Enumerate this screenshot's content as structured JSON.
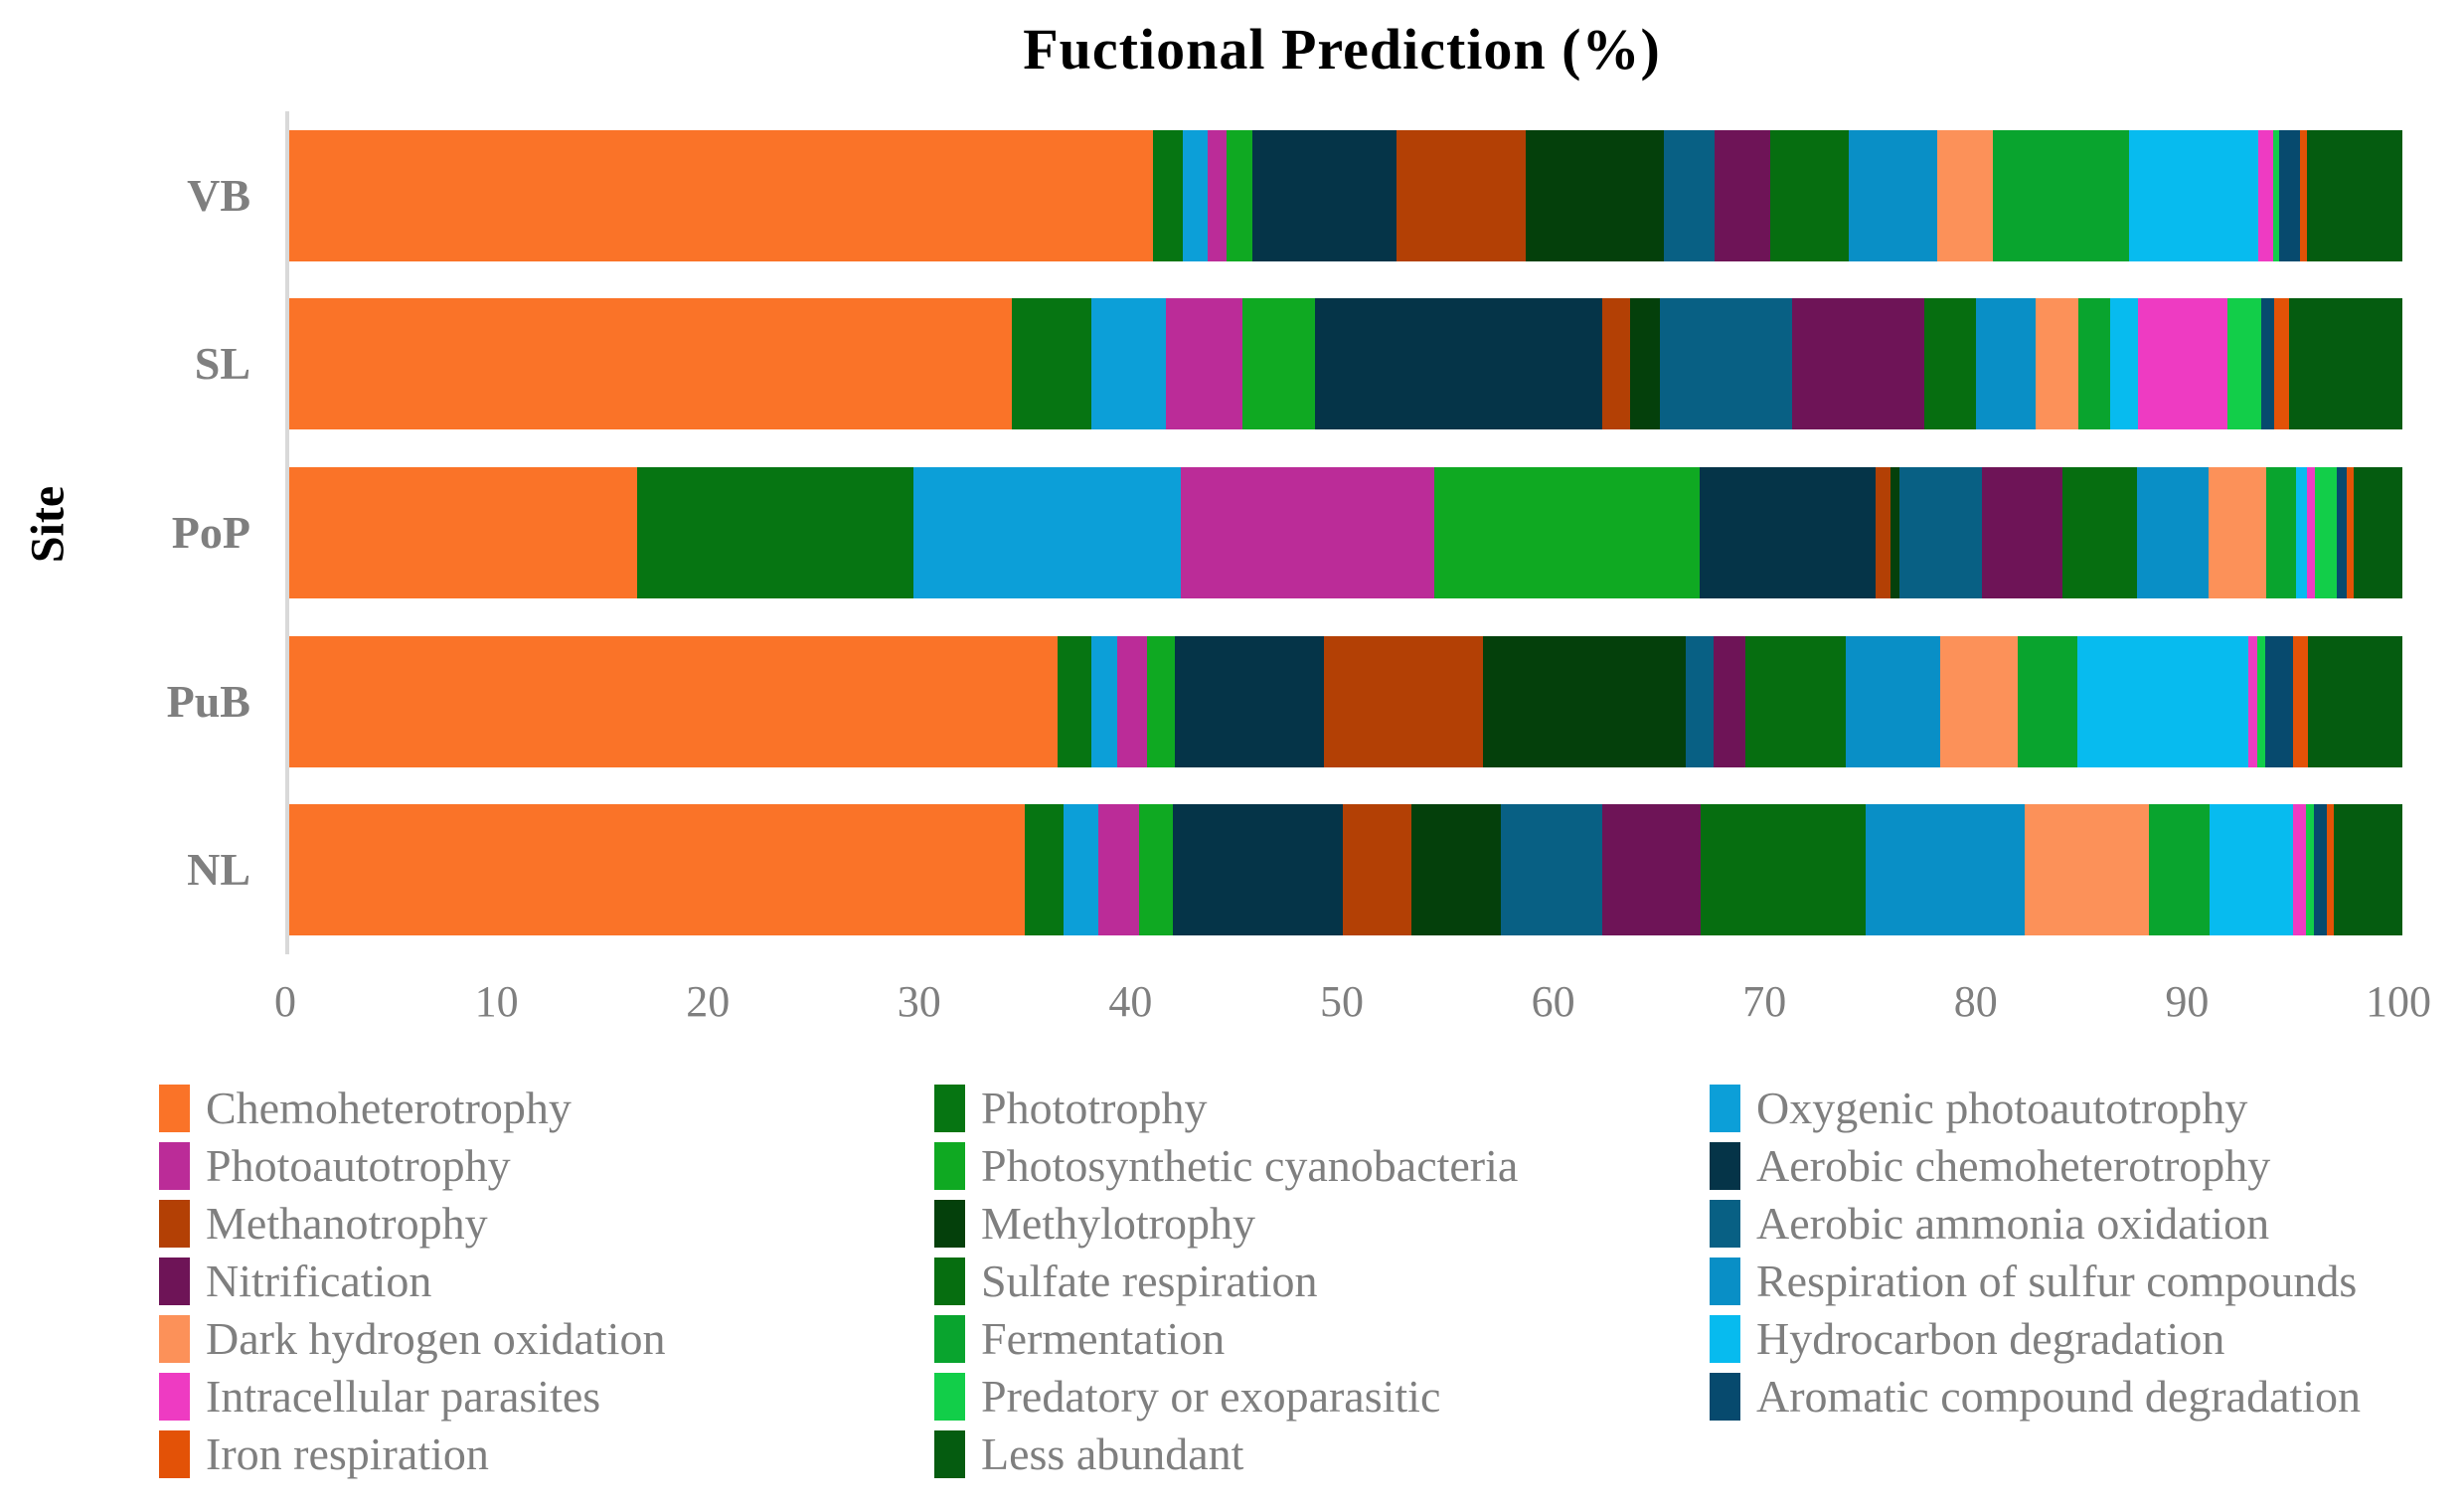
{
  "title": "Fuctional Prediction (%)",
  "ylabel": "Site",
  "colors": {
    "title_text": "#000000",
    "axis_line": "#D9D9D9",
    "label_text": "#7F7F7F"
  },
  "chart_data": {
    "type": "bar",
    "orientation": "horizontal-stacked",
    "title": "Fuctional Prediction (%)",
    "xlabel": "",
    "ylabel": "Site",
    "xlim": [
      0,
      100
    ],
    "x_ticks": [
      0,
      10,
      20,
      30,
      40,
      50,
      60,
      70,
      80,
      90,
      100
    ],
    "grid": false,
    "legend_position": "bottom",
    "categories": [
      "VB",
      "SL",
      "PoP",
      "PuB",
      "NL"
    ],
    "series": [
      {
        "name": "Chemoheterotrophy",
        "color": "#FA7328",
        "values": [
          40.7,
          33.9,
          16.4,
          35.9,
          34.3
        ]
      },
      {
        "name": "Phototrophy",
        "color": "#067512",
        "values": [
          1.4,
          3.7,
          13.0,
          1.6,
          1.8
        ]
      },
      {
        "name": "Oxygenic photoautotrophy",
        "color": "#0C9FD8",
        "values": [
          1.2,
          3.5,
          12.6,
          1.2,
          1.6
        ]
      },
      {
        "name": "Photoautotrophy",
        "color": "#BB2C98",
        "values": [
          0.9,
          3.6,
          11.9,
          1.4,
          1.9
        ]
      },
      {
        "name": "Photosynthetic cyanobacteria",
        "color": "#0FA922",
        "values": [
          1.2,
          3.4,
          12.5,
          1.3,
          1.6
        ]
      },
      {
        "name": "Aerobic chemoheterotrophy",
        "color": "#053448",
        "values": [
          6.8,
          13.5,
          8.3,
          7.0,
          7.9
        ]
      },
      {
        "name": "Methanotrophy",
        "color": "#B34005",
        "values": [
          6.1,
          1.3,
          0.7,
          7.4,
          3.2
        ]
      },
      {
        "name": "Methylotrophy",
        "color": "#04400B",
        "values": [
          6.5,
          1.4,
          0.4,
          9.5,
          4.2
        ]
      },
      {
        "name": "Aerobic ammonia oxidation",
        "color": "#086084",
        "values": [
          2.4,
          6.2,
          3.9,
          1.3,
          4.7
        ]
      },
      {
        "name": "Nitrification",
        "color": "#6E1457",
        "values": [
          2.6,
          6.2,
          3.8,
          1.5,
          4.6
        ]
      },
      {
        "name": "Sulfate respiration",
        "color": "#066E10",
        "values": [
          3.7,
          2.4,
          3.5,
          4.7,
          7.7
        ]
      },
      {
        "name": "Respiration of sulfur compounds",
        "color": "#098FC6",
        "values": [
          4.2,
          2.8,
          3.4,
          4.4,
          7.4
        ]
      },
      {
        "name": "Dark hydrogen oxidation",
        "color": "#FC9159",
        "values": [
          2.6,
          2.0,
          2.7,
          3.6,
          5.8
        ]
      },
      {
        "name": "Fermentation",
        "color": "#09A42E",
        "values": [
          6.4,
          1.5,
          1.4,
          2.8,
          2.8
        ]
      },
      {
        "name": "Hydrocarbon degradation",
        "color": "#07BBEF",
        "values": [
          6.1,
          1.3,
          0.5,
          8.0,
          3.9
        ]
      },
      {
        "name": "Intracellular parasites",
        "color": "#EE3BC2",
        "values": [
          0.7,
          4.2,
          0.4,
          0.4,
          0.6
        ]
      },
      {
        "name": "Predatory or exoparasitic",
        "color": "#12CE49",
        "values": [
          0.3,
          1.6,
          1.0,
          0.4,
          0.4
        ]
      },
      {
        "name": "Aromatic compound degradation",
        "color": "#074A6E",
        "values": [
          1.0,
          0.6,
          0.5,
          1.3,
          0.6
        ]
      },
      {
        "name": "Iron respiration",
        "color": "#E35207",
        "values": [
          0.3,
          0.7,
          0.3,
          0.7,
          0.3
        ]
      },
      {
        "name": "Less abundant",
        "color": "#055C10",
        "values": [
          4.5,
          5.3,
          2.3,
          4.4,
          3.2
        ]
      }
    ],
    "legend_columns": [
      [
        0,
        3,
        6,
        9,
        12,
        15,
        18
      ],
      [
        1,
        4,
        7,
        10,
        13,
        16,
        19
      ],
      [
        2,
        5,
        8,
        11,
        14,
        17
      ]
    ]
  }
}
